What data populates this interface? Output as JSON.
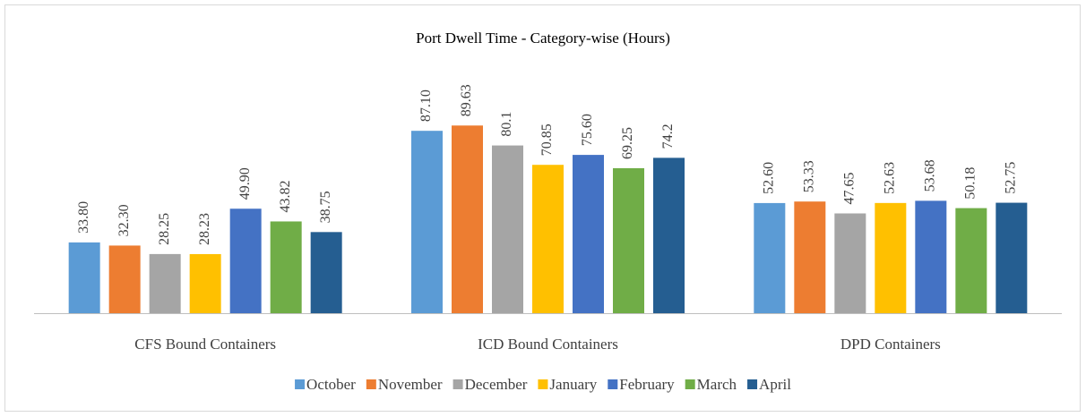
{
  "chart_data": {
    "type": "bar",
    "title": "Port Dwell Time - Category-wise (Hours)",
    "categories": [
      "CFS Bound Containers",
      "ICD Bound Containers",
      "DPD Containers"
    ],
    "ylim": [
      0,
      100
    ],
    "series": [
      {
        "name": "October",
        "color": "#5b9bd5",
        "values": [
          33.8,
          87.1,
          52.6
        ],
        "value_labels": [
          "33.80",
          "87.10",
          "52.60"
        ]
      },
      {
        "name": "November",
        "color": "#ed7d31",
        "values": [
          32.3,
          89.63,
          53.33
        ],
        "value_labels": [
          "32.30",
          "89.63",
          "53.33"
        ]
      },
      {
        "name": "December",
        "color": "#a5a5a5",
        "values": [
          28.25,
          80.1,
          47.65
        ],
        "value_labels": [
          "28.25",
          "80.1",
          "47.65"
        ]
      },
      {
        "name": "January",
        "color": "#ffc000",
        "values": [
          28.23,
          70.85,
          52.63
        ],
        "value_labels": [
          "28.23",
          "70.85",
          "52.63"
        ]
      },
      {
        "name": "February",
        "color": "#4472c4",
        "values": [
          49.9,
          75.6,
          53.68
        ],
        "value_labels": [
          "49.90",
          "75.60",
          "53.68"
        ]
      },
      {
        "name": "March",
        "color": "#70ad47",
        "values": [
          43.82,
          69.25,
          50.18
        ],
        "value_labels": [
          "43.82",
          "69.25",
          "50.18"
        ]
      },
      {
        "name": "April",
        "color": "#255e91",
        "values": [
          38.75,
          74.2,
          52.75
        ],
        "value_labels": [
          "38.75",
          "74.2",
          "52.75"
        ]
      }
    ]
  }
}
